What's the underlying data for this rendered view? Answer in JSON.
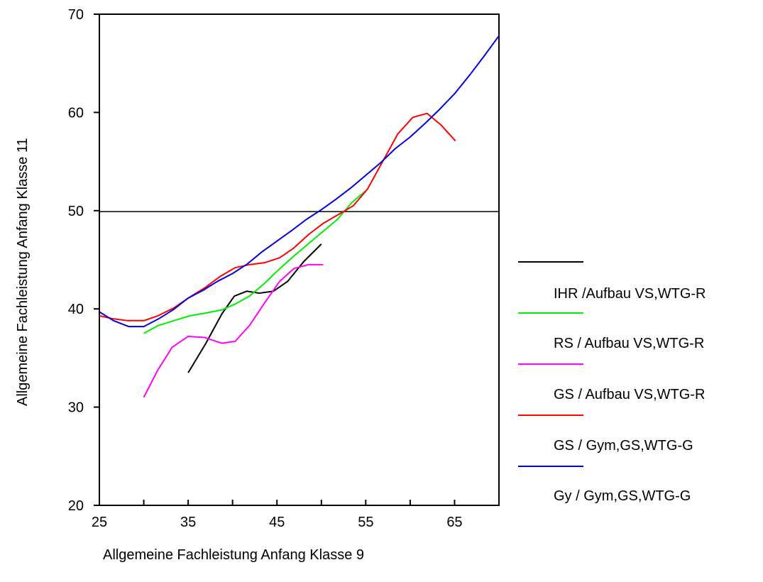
{
  "chart_data": {
    "type": "line",
    "title": "",
    "xlabel": "Allgemeine Fachleistung Anfang Klasse 9",
    "ylabel": "Allgemeine Fachleistung Anfang Klasse 11",
    "xlim": [
      25,
      70
    ],
    "ylim": [
      20,
      70
    ],
    "xticks": [
      25,
      35,
      45,
      55,
      65
    ],
    "yticks": [
      20,
      30,
      40,
      50,
      60,
      70
    ],
    "reference_line": {
      "y": 49.9,
      "color": "#000000"
    },
    "legend_position": "right",
    "legend_labels": [
      "IHR /Aufbau VS,WTG-R",
      "RS / Aufbau VS,WTG-R",
      "GS / Aufbau VS,WTG-R",
      "GS / Gym,GS,WTG-G",
      "Gy / Gym,GS,WTG-G"
    ],
    "series": [
      {
        "color": "#000000",
        "points": [
          [
            35,
            33.5
          ],
          [
            37,
            36.5
          ],
          [
            38.8,
            39.5
          ],
          [
            40.2,
            41.3
          ],
          [
            41.6,
            41.8
          ],
          [
            43,
            41.6
          ],
          [
            44.6,
            41.8
          ],
          [
            46.2,
            42.8
          ],
          [
            48,
            44.8
          ],
          [
            50,
            46.6
          ]
        ]
      },
      {
        "color": "#00ee00",
        "points": [
          [
            30,
            37.5
          ],
          [
            31.6,
            38.3
          ],
          [
            33.4,
            38.8
          ],
          [
            35.2,
            39.3
          ],
          [
            37.1,
            39.6
          ],
          [
            38.8,
            39.9
          ],
          [
            40.3,
            40.5
          ],
          [
            41.9,
            41.3
          ],
          [
            43.6,
            42.6
          ],
          [
            45.2,
            44.0
          ],
          [
            46.8,
            45.3
          ],
          [
            48.5,
            46.6
          ],
          [
            50.2,
            47.9
          ],
          [
            51.8,
            49.1
          ],
          [
            53.4,
            50.8
          ],
          [
            55.1,
            52.1
          ]
        ]
      },
      {
        "color": "#ff00ff",
        "points": [
          [
            30,
            31.0
          ],
          [
            31.6,
            33.8
          ],
          [
            33.2,
            36.1
          ],
          [
            35,
            37.2
          ],
          [
            36.8,
            37.1
          ],
          [
            38.8,
            36.5
          ],
          [
            40.3,
            36.7
          ],
          [
            41.9,
            38.3
          ],
          [
            43.6,
            40.6
          ],
          [
            45.3,
            42.8
          ],
          [
            46.9,
            44.1
          ],
          [
            48.5,
            44.5
          ],
          [
            50.2,
            44.5
          ]
        ]
      },
      {
        "color": "#ff0000",
        "points": [
          [
            25,
            39.3
          ],
          [
            26.5,
            39.0
          ],
          [
            28.2,
            38.8
          ],
          [
            30,
            38.8
          ],
          [
            31.6,
            39.3
          ],
          [
            33.4,
            40.1
          ],
          [
            35,
            41.1
          ],
          [
            36.8,
            42.1
          ],
          [
            38.6,
            43.3
          ],
          [
            40.3,
            44.2
          ],
          [
            41.9,
            44.5
          ],
          [
            43.6,
            44.7
          ],
          [
            45.3,
            45.2
          ],
          [
            46.9,
            46.2
          ],
          [
            48.6,
            47.6
          ],
          [
            50.2,
            48.7
          ],
          [
            51.9,
            49.6
          ],
          [
            53.6,
            50.5
          ],
          [
            55.2,
            52.2
          ],
          [
            56.9,
            55.0
          ],
          [
            58.6,
            57.8
          ],
          [
            60.3,
            59.5
          ],
          [
            61.9,
            59.9
          ],
          [
            63.5,
            58.7
          ],
          [
            65.1,
            57.1
          ]
        ]
      },
      {
        "color": "#0000dd",
        "points": [
          [
            25,
            39.7
          ],
          [
            26.6,
            38.8
          ],
          [
            28.3,
            38.2
          ],
          [
            30,
            38.2
          ],
          [
            31.7,
            39.0
          ],
          [
            33.3,
            39.9
          ],
          [
            35,
            41.1
          ],
          [
            36.7,
            41.9
          ],
          [
            38.3,
            42.8
          ],
          [
            40,
            43.6
          ],
          [
            41.7,
            44.6
          ],
          [
            43.3,
            45.8
          ],
          [
            45,
            46.9
          ],
          [
            46.7,
            48.0
          ],
          [
            48.3,
            49.1
          ],
          [
            50,
            50.1
          ],
          [
            51.7,
            51.2
          ],
          [
            53.3,
            52.3
          ],
          [
            55,
            53.6
          ],
          [
            56.7,
            54.9
          ],
          [
            58.3,
            56.3
          ],
          [
            60,
            57.5
          ],
          [
            61.7,
            58.9
          ],
          [
            63.3,
            60.3
          ],
          [
            65,
            61.9
          ],
          [
            66.7,
            63.8
          ],
          [
            68.3,
            65.7
          ],
          [
            70,
            67.8
          ]
        ]
      }
    ]
  }
}
